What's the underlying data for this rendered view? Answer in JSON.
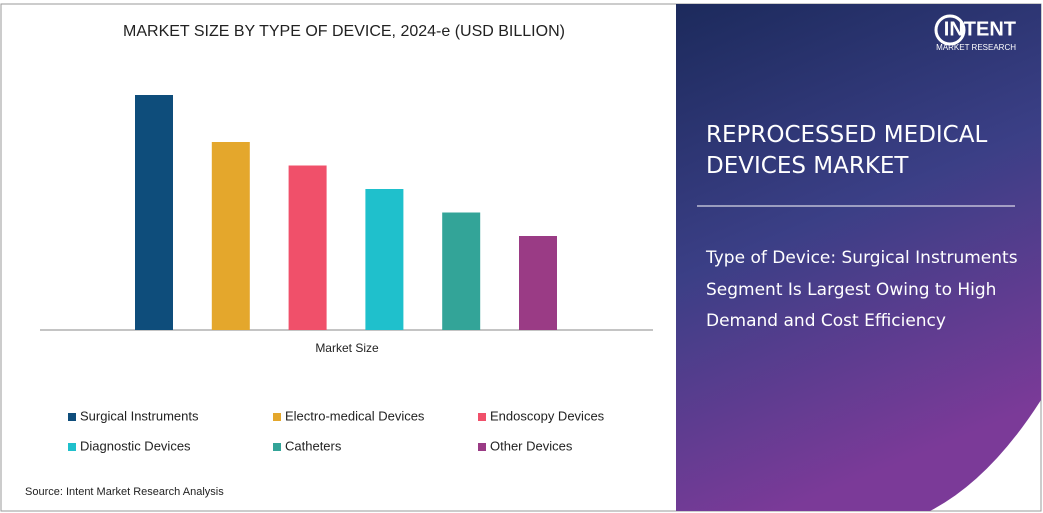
{
  "chart_data": {
    "type": "bar",
    "title": "MARKET SIZE BY TYPE OF DEVICE, 2024-e (USD BILLION)",
    "categories": [
      "Market Size"
    ],
    "series": [
      {
        "name": "Surgical Instruments",
        "color": "#0e4d7b",
        "values": [
          10
        ]
      },
      {
        "name": "Electro-medical Devices",
        "color": "#e4a72c",
        "values": [
          8
        ]
      },
      {
        "name": "Endoscopy Devices",
        "color": "#f0506a",
        "values": [
          7
        ]
      },
      {
        "name": "Diagnostic Devices",
        "color": "#1fc0cc",
        "values": [
          6
        ]
      },
      {
        "name": "Catheters",
        "color": "#33a498",
        "values": [
          5
        ]
      },
      {
        "name": "Other Devices",
        "color": "#9a3b85",
        "values": [
          4
        ]
      }
    ]
  },
  "source": "Source: Intent Market Research Analysis",
  "logo": {
    "name": "INTENT",
    "tagline": "MARKET RESEARCH"
  },
  "panel": {
    "heading": [
      "REPROCESSED MEDICAL",
      "DEVICES MARKET"
    ],
    "subheading": [
      "Type of Device: Surgical Instruments",
      "Segment Is Largest Owing to High",
      "Demand and Cost Efficiency"
    ]
  }
}
